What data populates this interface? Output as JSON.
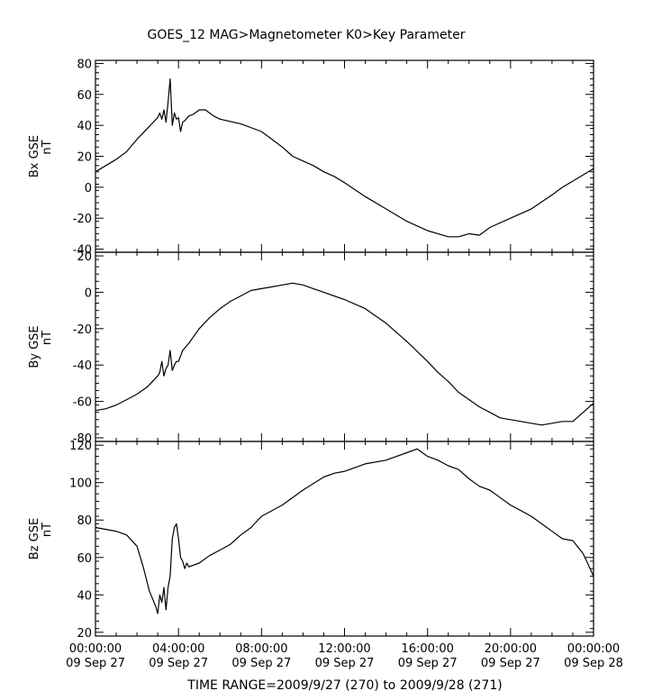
{
  "title": "GOES_12  MAG>Magnetometer  K0>Key Parameter",
  "time_range_text": "TIME RANGE=2009/9/27 (270) to 2009/9/28 (271)",
  "colors": {
    "line": "#000000",
    "background": "#ffffff"
  },
  "chart_data": [
    {
      "type": "line",
      "ylabel": "Bx GSE",
      "yunit": "nT",
      "ylim": [
        -42,
        82
      ],
      "yticks": [
        -40,
        -20,
        0,
        20,
        40,
        60,
        80
      ],
      "xlim": [
        0,
        24
      ],
      "x_ticks": [
        {
          "h": 0,
          "time": "00:00:00",
          "date": "09 Sep 27"
        },
        {
          "h": 4,
          "time": "04:00:00",
          "date": "09 Sep 27"
        },
        {
          "h": 8,
          "time": "08:00:00",
          "date": "09 Sep 27"
        },
        {
          "h": 12,
          "time": "12:00:00",
          "date": "09 Sep 27"
        },
        {
          "h": 16,
          "time": "16:00:00",
          "date": "09 Sep 27"
        },
        {
          "h": 20,
          "time": "20:00:00",
          "date": "09 Sep 27"
        },
        {
          "h": 24,
          "time": "00:00:00",
          "date": "09 Sep 28"
        }
      ],
      "series": [
        {
          "x": [
            0,
            0.5,
            1,
            1.5,
            2,
            2.5,
            3,
            3.1,
            3.2,
            3.3,
            3.4,
            3.5,
            3.6,
            3.7,
            3.8,
            3.9,
            4.0,
            4.1,
            4.2,
            4.3,
            4.5,
            4.7,
            5,
            5.3,
            5.7,
            6,
            7,
            8,
            8.5,
            9,
            9.5,
            10,
            10.5,
            11,
            11.5,
            12,
            13,
            14,
            15,
            16,
            16.5,
            17,
            17.5,
            18,
            18.5,
            19,
            20,
            21,
            22,
            22.5,
            23,
            23.5,
            24
          ],
          "y": [
            10,
            14,
            18,
            23,
            31,
            38,
            45,
            48,
            44,
            50,
            42,
            55,
            70,
            40,
            48,
            44,
            45,
            36,
            42,
            43,
            46,
            47,
            50,
            50,
            46,
            44,
            41,
            36,
            31,
            26,
            20,
            17,
            14,
            10,
            7,
            3,
            -6,
            -14,
            -22,
            -28,
            -30,
            -32,
            -32,
            -30,
            -31,
            -26,
            -20,
            -14,
            -5,
            0,
            4,
            8,
            12
          ]
        }
      ]
    },
    {
      "type": "line",
      "ylabel": "By GSE",
      "yunit": "nT",
      "ylim": [
        -82,
        22
      ],
      "yticks": [
        -80,
        -60,
        -40,
        -20,
        0,
        20
      ],
      "xlim": [
        0,
        24
      ],
      "series": [
        {
          "x": [
            0,
            0.5,
            1,
            1.5,
            2,
            2.5,
            3,
            3.1,
            3.2,
            3.3,
            3.4,
            3.5,
            3.6,
            3.7,
            3.8,
            3.9,
            4.0,
            4.2,
            4.5,
            5,
            5.5,
            6,
            6.5,
            7,
            7.5,
            8,
            8.5,
            9,
            9.5,
            10,
            10.5,
            11,
            11.5,
            12,
            13,
            14,
            15,
            16,
            16.5,
            17,
            17.5,
            18,
            18.5,
            19,
            19.5,
            20,
            20.5,
            21,
            21.5,
            22,
            22.5,
            23,
            23.5,
            24
          ],
          "y": [
            -65,
            -64,
            -62,
            -59,
            -56,
            -52,
            -46,
            -44,
            -38,
            -46,
            -42,
            -40,
            -32,
            -43,
            -40,
            -38,
            -38,
            -32,
            -28,
            -20,
            -14,
            -9,
            -5,
            -2,
            1,
            2,
            3,
            4,
            5,
            4,
            2,
            0,
            -2,
            -4,
            -9,
            -17,
            -27,
            -38,
            -44,
            -49,
            -55,
            -59,
            -63,
            -66,
            -69,
            -70,
            -71,
            -72,
            -73,
            -72,
            -71,
            -71,
            -66,
            -61
          ]
        }
      ]
    },
    {
      "type": "line",
      "ylabel": "Bz GSE",
      "yunit": "nT",
      "ylim": [
        18,
        122
      ],
      "yticks": [
        20,
        40,
        60,
        80,
        100,
        120
      ],
      "xlim": [
        0,
        24
      ],
      "series": [
        {
          "x": [
            0,
            0.5,
            1,
            1.5,
            2,
            2.3,
            2.6,
            2.9,
            3.0,
            3.1,
            3.2,
            3.3,
            3.4,
            3.5,
            3.6,
            3.7,
            3.8,
            3.9,
            4.0,
            4.1,
            4.2,
            4.3,
            4.4,
            4.5,
            5,
            5.5,
            6,
            6.5,
            7,
            7.5,
            8,
            9,
            10,
            11,
            11.5,
            12,
            13,
            14,
            15,
            15.5,
            16,
            16.5,
            17,
            17.5,
            18,
            18.5,
            19,
            19.5,
            20,
            20.5,
            21,
            21.5,
            22,
            22.5,
            23,
            23.5,
            24
          ],
          "y": [
            76,
            75,
            74,
            72,
            66,
            55,
            42,
            34,
            30,
            40,
            36,
            44,
            32,
            44,
            50,
            70,
            76,
            78,
            70,
            60,
            58,
            54,
            57,
            55,
            57,
            61,
            64,
            67,
            72,
            76,
            82,
            88,
            96,
            103,
            105,
            106,
            110,
            112,
            116,
            118,
            114,
            112,
            109,
            107,
            102,
            98,
            96,
            92,
            88,
            85,
            82,
            78,
            74,
            70,
            69,
            62,
            50
          ]
        }
      ]
    }
  ]
}
